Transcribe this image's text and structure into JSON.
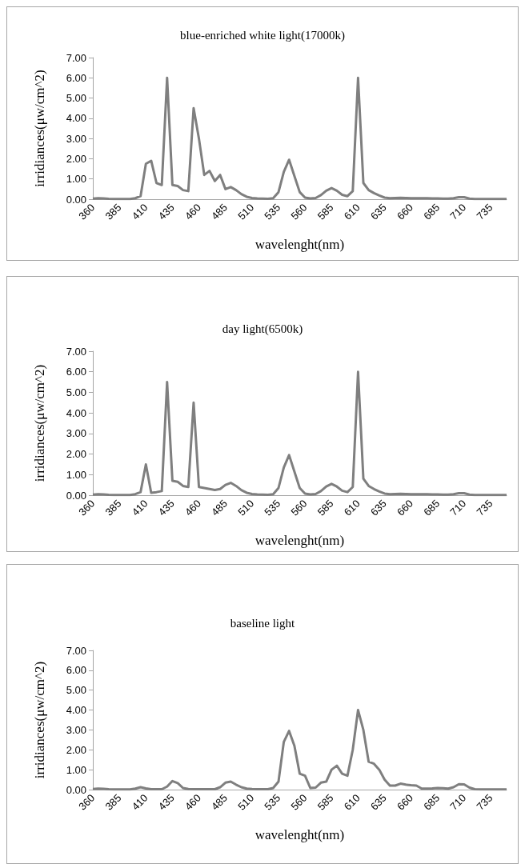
{
  "chart_data": [
    {
      "type": "line",
      "title": "blue-enriched white light(17000k)",
      "xlabel": "wavelenght(nm)",
      "ylabel": "irridiances(μw/cm^2)",
      "x": [
        360,
        365,
        370,
        375,
        380,
        385,
        390,
        395,
        400,
        405,
        410,
        415,
        420,
        425,
        430,
        435,
        440,
        445,
        450,
        455,
        460,
        465,
        470,
        475,
        480,
        485,
        490,
        495,
        500,
        505,
        510,
        515,
        520,
        525,
        530,
        535,
        540,
        545,
        550,
        555,
        560,
        565,
        570,
        575,
        580,
        585,
        590,
        595,
        600,
        605,
        610,
        615,
        620,
        625,
        630,
        635,
        640,
        645,
        650,
        655,
        660,
        665,
        670,
        675,
        680,
        685,
        690,
        695,
        700,
        705,
        710,
        715,
        720,
        725,
        730,
        735,
        740,
        745,
        750
      ],
      "series": [
        {
          "color": "#7f7f7f",
          "values": [
            0.03,
            0.05,
            0.04,
            0.02,
            0.01,
            0.01,
            0.01,
            0.01,
            0.05,
            0.15,
            1.75,
            1.9,
            0.8,
            0.7,
            6.0,
            0.7,
            0.65,
            0.45,
            0.4,
            4.5,
            3.0,
            1.2,
            1.4,
            0.9,
            1.2,
            0.5,
            0.6,
            0.45,
            0.25,
            0.12,
            0.06,
            0.04,
            0.03,
            0.02,
            0.05,
            0.35,
            1.35,
            1.95,
            1.15,
            0.35,
            0.08,
            0.04,
            0.06,
            0.2,
            0.42,
            0.55,
            0.42,
            0.22,
            0.15,
            0.4,
            6.0,
            0.8,
            0.45,
            0.3,
            0.18,
            0.08,
            0.05,
            0.06,
            0.07,
            0.06,
            0.05,
            0.05,
            0.05,
            0.05,
            0.04,
            0.04,
            0.03,
            0.03,
            0.05,
            0.1,
            0.1,
            0.03,
            0.01,
            0.01,
            0.01,
            0.01,
            0.01,
            0.01,
            0.01
          ]
        }
      ],
      "xlim": [
        360,
        750
      ],
      "xticks": [
        360,
        385,
        410,
        435,
        460,
        485,
        510,
        535,
        560,
        585,
        610,
        635,
        660,
        685,
        710,
        735
      ],
      "ylim": [
        0,
        7
      ],
      "yticks": [
        {
          "value": 0,
          "label": "0.00"
        },
        {
          "value": 1,
          "label": "1.00"
        },
        {
          "value": 2,
          "label": "2.00"
        },
        {
          "value": 3,
          "label": "3.00"
        },
        {
          "value": 4,
          "label": "4.00"
        },
        {
          "value": 5,
          "label": "5.00"
        },
        {
          "value": 6,
          "label": "6.00"
        },
        {
          "value": 7,
          "label": "7.00"
        }
      ]
    },
    {
      "type": "line",
      "title": "day light(6500k)",
      "xlabel": "wavelenght(nm)",
      "ylabel": "irridiances(μw/cm^2)",
      "x": [
        360,
        365,
        370,
        375,
        380,
        385,
        390,
        395,
        400,
        405,
        410,
        415,
        420,
        425,
        430,
        435,
        440,
        445,
        450,
        455,
        460,
        465,
        470,
        475,
        480,
        485,
        490,
        495,
        500,
        505,
        510,
        515,
        520,
        525,
        530,
        535,
        540,
        545,
        550,
        555,
        560,
        565,
        570,
        575,
        580,
        585,
        590,
        595,
        600,
        605,
        610,
        615,
        620,
        625,
        630,
        635,
        640,
        645,
        650,
        655,
        660,
        665,
        670,
        675,
        680,
        685,
        690,
        695,
        700,
        705,
        710,
        715,
        720,
        725,
        730,
        735,
        740,
        745,
        750
      ],
      "series": [
        {
          "color": "#7f7f7f",
          "values": [
            0.03,
            0.05,
            0.04,
            0.02,
            0.01,
            0.01,
            0.01,
            0.01,
            0.05,
            0.15,
            1.5,
            0.12,
            0.15,
            0.2,
            5.5,
            0.7,
            0.65,
            0.45,
            0.4,
            4.5,
            0.4,
            0.35,
            0.3,
            0.25,
            0.3,
            0.5,
            0.6,
            0.45,
            0.25,
            0.12,
            0.06,
            0.04,
            0.03,
            0.02,
            0.05,
            0.35,
            1.35,
            1.95,
            1.15,
            0.35,
            0.08,
            0.04,
            0.06,
            0.2,
            0.42,
            0.55,
            0.42,
            0.22,
            0.15,
            0.4,
            6.0,
            0.8,
            0.45,
            0.3,
            0.18,
            0.08,
            0.05,
            0.06,
            0.07,
            0.06,
            0.05,
            0.05,
            0.05,
            0.05,
            0.04,
            0.04,
            0.03,
            0.03,
            0.05,
            0.1,
            0.1,
            0.03,
            0.01,
            0.01,
            0.01,
            0.01,
            0.01,
            0.01,
            0.01
          ]
        }
      ],
      "xlim": [
        360,
        750
      ],
      "xticks": [
        360,
        385,
        410,
        435,
        460,
        485,
        510,
        535,
        560,
        585,
        610,
        635,
        660,
        685,
        710,
        735
      ],
      "ylim": [
        0,
        7
      ],
      "yticks": [
        {
          "value": 0,
          "label": "0.00"
        },
        {
          "value": 1,
          "label": "1.00"
        },
        {
          "value": 2,
          "label": "2.00"
        },
        {
          "value": 3,
          "label": "3.00"
        },
        {
          "value": 4,
          "label": "4.00"
        },
        {
          "value": 5,
          "label": "5.00"
        },
        {
          "value": 6,
          "label": "6.00"
        },
        {
          "value": 7,
          "label": "7.00"
        }
      ]
    },
    {
      "type": "line",
      "title": "baseline light",
      "xlabel": "wavelenght(nm)",
      "ylabel": "irridiances(μw/cm^2)",
      "x": [
        360,
        365,
        370,
        375,
        380,
        385,
        390,
        395,
        400,
        405,
        410,
        415,
        420,
        425,
        430,
        435,
        440,
        445,
        450,
        455,
        460,
        465,
        470,
        475,
        480,
        485,
        490,
        495,
        500,
        505,
        510,
        515,
        520,
        525,
        530,
        535,
        540,
        545,
        550,
        555,
        560,
        565,
        570,
        575,
        580,
        585,
        590,
        595,
        600,
        605,
        610,
        615,
        620,
        625,
        630,
        635,
        640,
        645,
        650,
        655,
        660,
        665,
        670,
        675,
        680,
        685,
        690,
        695,
        700,
        705,
        710,
        715,
        720,
        725,
        730,
        735,
        740,
        745,
        750
      ],
      "series": [
        {
          "color": "#7f7f7f",
          "values": [
            0.03,
            0.05,
            0.04,
            0.02,
            0.01,
            0.01,
            0.01,
            0.01,
            0.05,
            0.12,
            0.06,
            0.02,
            0.02,
            0.02,
            0.15,
            0.43,
            0.33,
            0.08,
            0.03,
            0.02,
            0.02,
            0.02,
            0.02,
            0.02,
            0.12,
            0.35,
            0.4,
            0.25,
            0.12,
            0.05,
            0.03,
            0.02,
            0.02,
            0.02,
            0.08,
            0.4,
            2.4,
            2.95,
            2.2,
            0.8,
            0.7,
            0.08,
            0.1,
            0.35,
            0.4,
            1.0,
            1.2,
            0.8,
            0.7,
            2.0,
            4.0,
            3.0,
            1.4,
            1.3,
            1.0,
            0.5,
            0.2,
            0.2,
            0.3,
            0.25,
            0.22,
            0.2,
            0.05,
            0.05,
            0.06,
            0.08,
            0.07,
            0.05,
            0.12,
            0.27,
            0.26,
            0.1,
            0.02,
            0.01,
            0.01,
            0.01,
            0.01,
            0.01,
            0.01
          ]
        }
      ],
      "xlim": [
        360,
        750
      ],
      "xticks": [
        360,
        385,
        410,
        435,
        460,
        485,
        510,
        535,
        560,
        585,
        610,
        635,
        660,
        685,
        710,
        735
      ],
      "ylim": [
        0,
        7
      ],
      "yticks": [
        {
          "value": 0,
          "label": "0.00"
        },
        {
          "value": 1,
          "label": "1.00"
        },
        {
          "value": 2,
          "label": "2.00"
        },
        {
          "value": 3,
          "label": "3.00"
        },
        {
          "value": 4,
          "label": "4.00"
        },
        {
          "value": 5,
          "label": "5.00"
        },
        {
          "value": 6,
          "label": "6.00"
        },
        {
          "value": 7,
          "label": "7.00"
        }
      ]
    }
  ]
}
